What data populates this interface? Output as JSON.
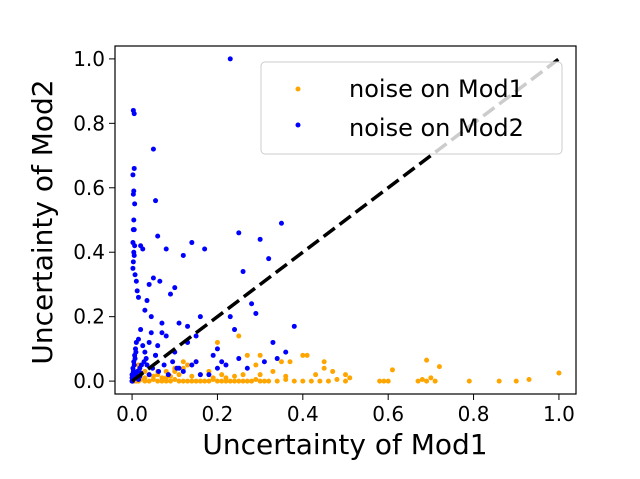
{
  "chart_data": {
    "type": "scatter",
    "title": "",
    "xlabel": "Uncertainty of Mod1",
    "ylabel": "Uncertainty of Mod2",
    "xlim": [
      -0.04,
      1.04
    ],
    "ylim": [
      -0.04,
      1.04
    ],
    "xticks": [
      0.0,
      0.2,
      0.4,
      0.6,
      0.8,
      1.0
    ],
    "xtick_labels": [
      "0.0",
      "0.2",
      "0.4",
      "0.6",
      "0.8",
      "1.0"
    ],
    "yticks": [
      0.0,
      0.2,
      0.4,
      0.6,
      0.8,
      1.0
    ],
    "ytick_labels": [
      "0.0",
      "0.2",
      "0.4",
      "0.6",
      "0.8",
      "1.0"
    ],
    "grid": false,
    "legend": {
      "placement": "top-right"
    },
    "reference_line": {
      "style": "dashed",
      "color": "#000000",
      "from": [
        0,
        0
      ],
      "to": [
        1,
        1
      ]
    },
    "series": [
      {
        "name": "noise on Mod1",
        "color": "#FFA500",
        "x": [
          0.0,
          0.005,
          0.01,
          0.015,
          0.02,
          0.03,
          0.04,
          0.05,
          0.06,
          0.07,
          0.08,
          0.09,
          0.1,
          0.11,
          0.12,
          0.13,
          0.14,
          0.15,
          0.16,
          0.17,
          0.18,
          0.19,
          0.2,
          0.21,
          0.22,
          0.23,
          0.24,
          0.25,
          0.26,
          0.27,
          0.28,
          0.29,
          0.3,
          0.31,
          0.32,
          0.34,
          0.36,
          0.38,
          0.4,
          0.42,
          0.44,
          0.46,
          0.48,
          0.5,
          0.51,
          0.58,
          0.59,
          0.6,
          0.67,
          0.68,
          0.69,
          0.7,
          0.71,
          0.79,
          0.86,
          0.9,
          0.93,
          1.0,
          0.02,
          0.04,
          0.06,
          0.08,
          0.1,
          0.12,
          0.13,
          0.15,
          0.18,
          0.21,
          0.27,
          0.29,
          0.33,
          0.37,
          0.41,
          0.45,
          0.5,
          0.005,
          0.01,
          0.03,
          0.05,
          0.07,
          0.09,
          0.11,
          0.14,
          0.16,
          0.19,
          0.24,
          0.26,
          0.36,
          0.43,
          0.47,
          0.61,
          0.69,
          0.72,
          0.08,
          0.06,
          0.12,
          0.2,
          0.25,
          0.3,
          0.35,
          0.4,
          0.45,
          0.03,
          0.015,
          0.1,
          0.22,
          0.3
        ],
        "y": [
          0.0,
          0.0,
          0.0,
          0.0,
          0.005,
          0.0,
          0.0,
          0.005,
          0.0,
          0.0,
          0.0,
          0.0,
          0.005,
          0.0,
          0.0,
          0.0,
          0.0,
          0.0,
          0.0,
          0.0,
          0.0,
          0.005,
          0.0,
          0.0,
          0.0,
          0.0,
          0.0,
          0.0,
          0.0,
          0.0,
          0.0,
          0.005,
          0.0,
          0.0,
          0.0,
          0.0,
          0.005,
          0.0,
          0.0,
          0.0,
          0.0,
          0.0,
          0.005,
          0.0,
          0.01,
          0.0,
          0.0,
          0.0,
          0.0,
          0.005,
          0.0,
          0.01,
          0.0,
          0.0,
          0.0,
          0.0,
          0.005,
          0.025,
          0.02,
          0.02,
          0.02,
          0.03,
          0.03,
          0.04,
          0.05,
          0.06,
          0.03,
          0.02,
          0.08,
          0.05,
          0.03,
          0.06,
          0.08,
          0.04,
          0.02,
          0.01,
          0.015,
          0.01,
          0.015,
          0.01,
          0.015,
          0.02,
          0.015,
          0.02,
          0.01,
          0.015,
          0.02,
          0.015,
          0.02,
          0.03,
          0.035,
          0.065,
          0.045,
          0.01,
          0.03,
          0.06,
          0.12,
          0.14,
          0.08,
          0.06,
          0.08,
          0.06,
          0.03,
          0.05,
          0.04,
          0.01,
          0.02
        ],
        "marker_size": 2.5
      },
      {
        "name": "noise on Mod2",
        "color": "#0000FF",
        "x": [
          0.0,
          0.003,
          0.005,
          0.005,
          0.002,
          0.004,
          0.003,
          0.006,
          0.004,
          0.003,
          0.005,
          0.002,
          0.006,
          0.004,
          0.005,
          0.003,
          0.002,
          0.007,
          0.01,
          0.012,
          0.015,
          0.02,
          0.025,
          0.03,
          0.035,
          0.04,
          0.045,
          0.05,
          0.055,
          0.06,
          0.065,
          0.07,
          0.08,
          0.09,
          0.1,
          0.11,
          0.12,
          0.13,
          0.14,
          0.15,
          0.16,
          0.17,
          0.19,
          0.2,
          0.21,
          0.23,
          0.24,
          0.25,
          0.26,
          0.28,
          0.29,
          0.3,
          0.32,
          0.33,
          0.34,
          0.35,
          0.36,
          0.38,
          0.23,
          0.05,
          0.055,
          0.045,
          0.06,
          0.03,
          0.02,
          0.015,
          0.025,
          0.04,
          0.035,
          0.07,
          0.08,
          0.1,
          0.11,
          0.13,
          0.15,
          0.18,
          0.0,
          0.002,
          0.004,
          0.006,
          0.008,
          0.01,
          0.0,
          0.003,
          0.005,
          0.007,
          0.009,
          0.001,
          0.004,
          0.008,
          0.012,
          0.018,
          0.022,
          0.028,
          0.033,
          0.04,
          0.048,
          0.055,
          0.062,
          0.075,
          0.085,
          0.095,
          0.105,
          0.12,
          0.14,
          0.16,
          0.2,
          0.22,
          0.25,
          0.27,
          0.31,
          0.0,
          0.003,
          0.006,
          0.009,
          0.012,
          0.015,
          0.018,
          0.021
        ],
        "y": [
          0.0,
          0.84,
          0.83,
          0.66,
          0.64,
          0.59,
          0.58,
          0.55,
          0.5,
          0.47,
          0.47,
          0.43,
          0.42,
          0.4,
          0.39,
          0.37,
          0.35,
          0.33,
          0.31,
          0.28,
          0.26,
          0.42,
          0.41,
          0.22,
          0.25,
          0.3,
          0.2,
          0.72,
          0.56,
          0.45,
          0.31,
          0.18,
          0.41,
          0.27,
          0.29,
          0.18,
          0.39,
          0.17,
          0.43,
          0.14,
          0.2,
          0.41,
          0.08,
          0.1,
          0.06,
          0.2,
          0.16,
          0.46,
          0.34,
          0.24,
          0.21,
          0.44,
          0.38,
          0.12,
          0.07,
          0.49,
          0.09,
          0.17,
          1.0,
          0.32,
          0.08,
          0.15,
          0.11,
          0.09,
          0.16,
          0.13,
          0.11,
          0.12,
          0.05,
          0.15,
          0.14,
          0.09,
          0.04,
          0.12,
          0.06,
          0.02,
          0.02,
          0.04,
          0.06,
          0.08,
          0.1,
          0.12,
          0.01,
          0.03,
          0.05,
          0.07,
          0.09,
          0.0,
          0.02,
          0.01,
          0.03,
          0.04,
          0.05,
          0.06,
          0.07,
          0.02,
          0.04,
          0.08,
          0.03,
          0.05,
          0.02,
          0.06,
          0.04,
          0.03,
          0.05,
          0.02,
          0.04,
          0.05,
          0.07,
          0.04,
          0.06,
          0.0,
          0.01,
          0.015,
          0.02,
          0.01,
          0.005,
          0.015,
          0.025
        ]
      }
    ]
  }
}
